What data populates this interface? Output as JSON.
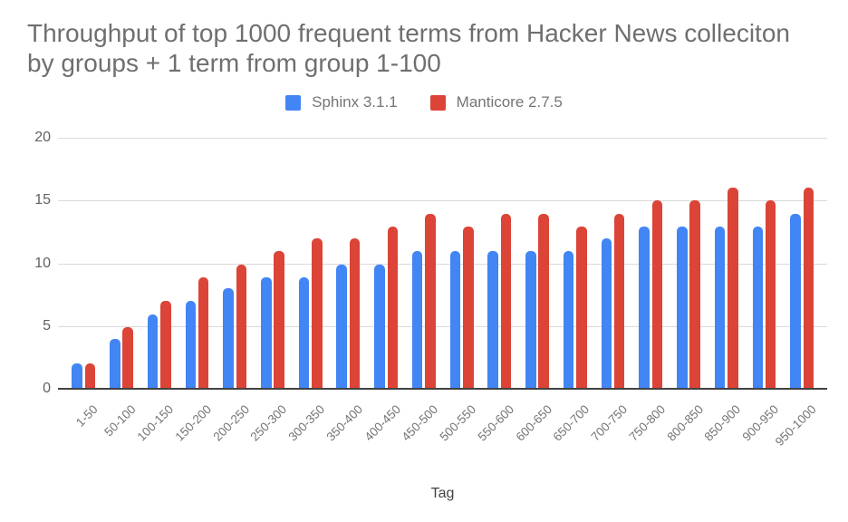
{
  "page": {
    "background": "#ffffff"
  },
  "chart_data": {
    "type": "bar",
    "title": "Throughput of top 1000 frequent terms from Hacker News colleciton by groups + 1 term from group 1-100",
    "xlabel": "Tag",
    "ylabel": "",
    "ylim": [
      0,
      20
    ],
    "yticks": [
      0,
      5,
      10,
      15,
      20
    ],
    "grid": true,
    "legend_position": "top",
    "title_color": "#6f6f6f",
    "axis_label_color": "#616161",
    "categories": [
      "1-50",
      "50-100",
      "100-150",
      "150-200",
      "200-250",
      "250-300",
      "300-350",
      "350-400",
      "400-450",
      "450-500",
      "500-550",
      "550-600",
      "600-650",
      "650-700",
      "700-750",
      "750-800",
      "800-850",
      "850-900",
      "900-950",
      "950-1000"
    ],
    "series": [
      {
        "name": "Sphinx 3.1.1",
        "color": "#4285f4",
        "values": [
          2,
          4,
          5.9,
          7,
          8,
          8.9,
          8.9,
          9.9,
          9.9,
          11,
          11,
          11,
          11,
          11,
          12,
          12.9,
          12.9,
          12.9,
          12.9,
          13.9
        ]
      },
      {
        "name": "Manticore 2.7.5",
        "color": "#db4437",
        "values": [
          2,
          4.9,
          7,
          8.9,
          9.9,
          11,
          12,
          12,
          12.9,
          13.9,
          12.9,
          13.9,
          13.9,
          12.9,
          13.9,
          15,
          15,
          16,
          15,
          16
        ]
      }
    ]
  }
}
